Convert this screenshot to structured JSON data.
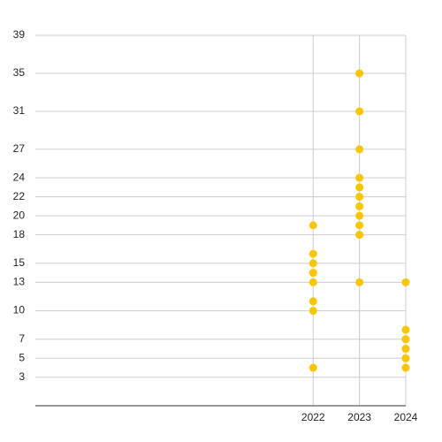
{
  "chart_data": {
    "type": "scatter",
    "x": [
      2022,
      2022,
      2022,
      2022,
      2022,
      2022,
      2022,
      2022,
      2023,
      2023,
      2023,
      2023,
      2023,
      2023,
      2023,
      2023,
      2023,
      2023,
      2023,
      2024,
      2024,
      2024,
      2024,
      2024,
      2024
    ],
    "values": [
      19,
      16,
      15,
      14,
      13,
      11,
      10,
      4,
      35,
      31,
      27,
      24,
      23,
      22,
      21,
      20,
      19,
      18,
      13,
      13,
      8,
      7,
      6,
      5,
      4
    ],
    "color": "#f7c600",
    "xlim": [
      2016,
      2024
    ],
    "xticks": [
      2022,
      2023,
      2024
    ],
    "ylim": [
      0,
      39
    ],
    "yticks": [
      3,
      5,
      7,
      10,
      13,
      15,
      18,
      20,
      22,
      24,
      27,
      31,
      35,
      39
    ],
    "grid": true
  }
}
